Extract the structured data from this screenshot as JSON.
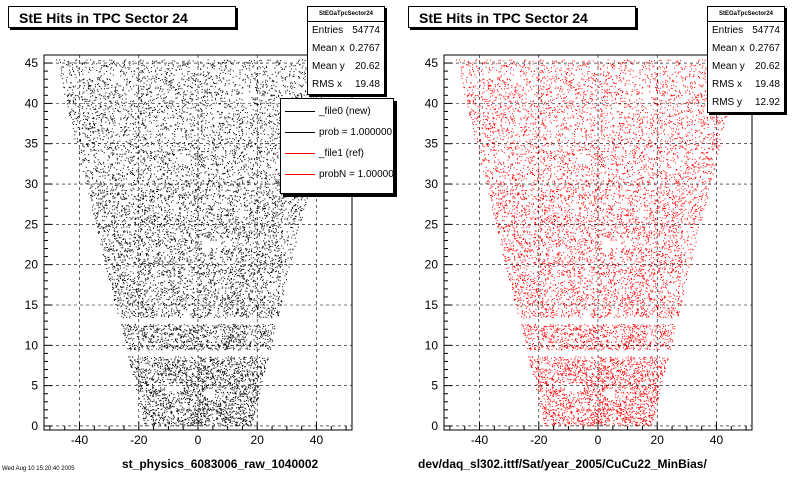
{
  "left": {
    "title": "StE Hits in TPC Sector 24",
    "stats": {
      "name": "StEGaTpcSector24",
      "rows": [
        {
          "label": "Entries",
          "value": "54774"
        },
        {
          "label": "Mean x",
          "value": "0.2767"
        },
        {
          "label": "Mean y",
          "value": "20.62"
        },
        {
          "label": "RMS x",
          "value": "19.48"
        }
      ]
    },
    "xlabel": "st_physics_6083006_raw_1040002",
    "legend": [
      {
        "label": "_file0 (new)",
        "color": "#000000"
      },
      {
        "label": "prob = 1.000000",
        "color": "#000000"
      },
      {
        "label": "_file1 (ref)",
        "color": "#ff0000"
      },
      {
        "label": "probN = 1.000000",
        "color": "#ff0000"
      }
    ]
  },
  "right": {
    "title": "StE Hits in TPC Sector 24",
    "stats": {
      "name": "StEGaTpcSector24",
      "rows": [
        {
          "label": "Entries",
          "value": "54774"
        },
        {
          "label": "Mean x",
          "value": "0.2767"
        },
        {
          "label": "Mean y",
          "value": "20.62"
        },
        {
          "label": "RMS x",
          "value": "19.48"
        },
        {
          "label": "RMS y",
          "value": "12.92"
        }
      ]
    },
    "xlabel": "dev/daq_sl302.ittf/Sat/year_2005/CuCu22_MinBias/"
  },
  "footer": "Wed Aug 10 15:20:40 2005",
  "chart_data": [
    {
      "type": "scatter",
      "title": "StE Hits in TPC Sector 24",
      "xlabel": "st_physics_6083006_raw_1040002",
      "ylabel": "",
      "xlim": [
        -52,
        52
      ],
      "ylim": [
        -0.5,
        46
      ],
      "xticks": [
        -40,
        -20,
        0,
        20,
        40
      ],
      "yticks": [
        0,
        5,
        10,
        15,
        20,
        25,
        30,
        35,
        40,
        45
      ],
      "grid": true,
      "color": "#000000",
      "entries": 54774,
      "mean_x": 0.2767,
      "mean_y": 20.62,
      "rms_x": 19.48,
      "shape": "trapezoidal sector hit map, half-width ~48 at y=45 narrowing to ~18 at y=0, gap near y=13 and y=9",
      "legend_position": "top-right"
    },
    {
      "type": "scatter",
      "title": "StE Hits in TPC Sector 24",
      "xlabel": "dev/daq_sl302.ittf/Sat/year_2005/CuCu22_MinBias/",
      "ylabel": "",
      "xlim": [
        -52,
        52
      ],
      "ylim": [
        -0.5,
        46
      ],
      "xticks": [
        -40,
        -20,
        0,
        20,
        40
      ],
      "yticks": [
        0,
        5,
        10,
        15,
        20,
        25,
        30,
        35,
        40,
        45
      ],
      "grid": true,
      "color": "#ff0000",
      "entries": 54774,
      "mean_x": 0.2767,
      "mean_y": 20.62,
      "rms_x": 19.48,
      "rms_y": 12.92,
      "shape": "trapezoidal sector hit map, half-width ~48 at y=45 narrowing to ~18 at y=0, gap near y=13 and y=9"
    }
  ]
}
